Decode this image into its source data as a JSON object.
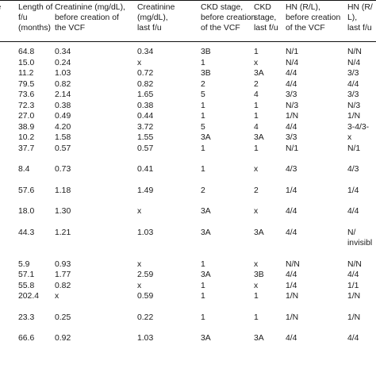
{
  "header": [
    {
      "lines": [
        "ive",
        ""
      ]
    },
    {
      "lines": [
        "Length of",
        "f/u",
        "(months)"
      ]
    },
    {
      "lines": [
        "Creatinine (mg/dL),",
        "before creation of",
        "the VCF"
      ]
    },
    {
      "lines": [
        "Creatinine",
        "(mg/dL),",
        "last f/u"
      ]
    },
    {
      "lines": [
        "CKD stage,",
        "before creation",
        "of the VCF"
      ]
    },
    {
      "lines": [
        "CKD",
        "stage,",
        "last f/u"
      ]
    },
    {
      "lines": [
        "HN (R/L),",
        "before creation",
        "of the VCF"
      ]
    },
    {
      "lines": [
        "HN (R/",
        "L),",
        "last f/u"
      ]
    }
  ],
  "rows": [
    [
      "",
      "64.8",
      "0.34",
      "0.34",
      "3B",
      "1",
      "N/1",
      "N/N"
    ],
    [
      "",
      "15.0",
      "0.24",
      "x",
      "1",
      "x",
      "N/4",
      "N/4"
    ],
    [
      "",
      "11.2",
      "1.03",
      "0.72",
      "3B",
      "3A",
      "4/4",
      "3/3"
    ],
    [
      "",
      "79.5",
      "0.82",
      "0.82",
      "2",
      "2",
      "4/4",
      "4/4"
    ],
    [
      "",
      "73.6",
      "2.14",
      "1.65",
      "5",
      "4",
      "3/3",
      "3/3"
    ],
    [
      "",
      "72.3",
      "0.38",
      "0.38",
      "1",
      "1",
      "N/3",
      "N/3"
    ],
    [
      "",
      "27.0",
      "0.49",
      "0.44",
      "1",
      "1",
      "1/N",
      "1/N"
    ],
    [
      "",
      "38.9",
      "4.20",
      "3.72",
      "5",
      "4",
      "4/4",
      "3-4/3-"
    ],
    [
      "",
      "10.2",
      "1.58",
      "1.55",
      "3A",
      "3A",
      "3/3",
      "x"
    ],
    [
      "",
      "37.7",
      "0.57",
      "0.57",
      "1",
      "1",
      "N/1",
      "N/1"
    ],
    [
      "",
      "8.4",
      "0.73",
      "0.41",
      "1",
      "x",
      "4/3",
      "4/3"
    ],
    [
      "",
      "57.6",
      "1.18",
      "1.49",
      "2",
      "2",
      "1/4",
      "1/4"
    ],
    [
      "",
      "18.0",
      "1.30",
      "x",
      "3A",
      "x",
      "4/4",
      "4/4"
    ],
    [
      "",
      "44.3",
      "1.21",
      "1.03",
      "3A",
      "3A",
      "4/4",
      "N/"
    ],
    [
      "",
      "",
      "",
      "",
      "",
      "",
      "",
      "invisibl"
    ],
    [
      "",
      "5.9",
      "0.93",
      "x",
      "1",
      "x",
      "N/N",
      "N/N"
    ],
    [
      "",
      "57.1",
      "1.77",
      "2.59",
      "3A",
      "3B",
      "4/4",
      "4/4"
    ],
    [
      "",
      "55.8",
      "0.82",
      "x",
      "1",
      "x",
      "1/4",
      "1/1"
    ],
    [
      "",
      "202.4",
      "x",
      "0.59",
      "1",
      "1",
      "1/N",
      "1/N"
    ],
    [
      "",
      "23.3",
      "0.25",
      "0.22",
      "1",
      "1",
      "1/N",
      "1/N"
    ],
    [
      "",
      "66.6",
      "0.92",
      "1.03",
      "3A",
      "3A",
      "4/4",
      "4/4"
    ]
  ]
}
